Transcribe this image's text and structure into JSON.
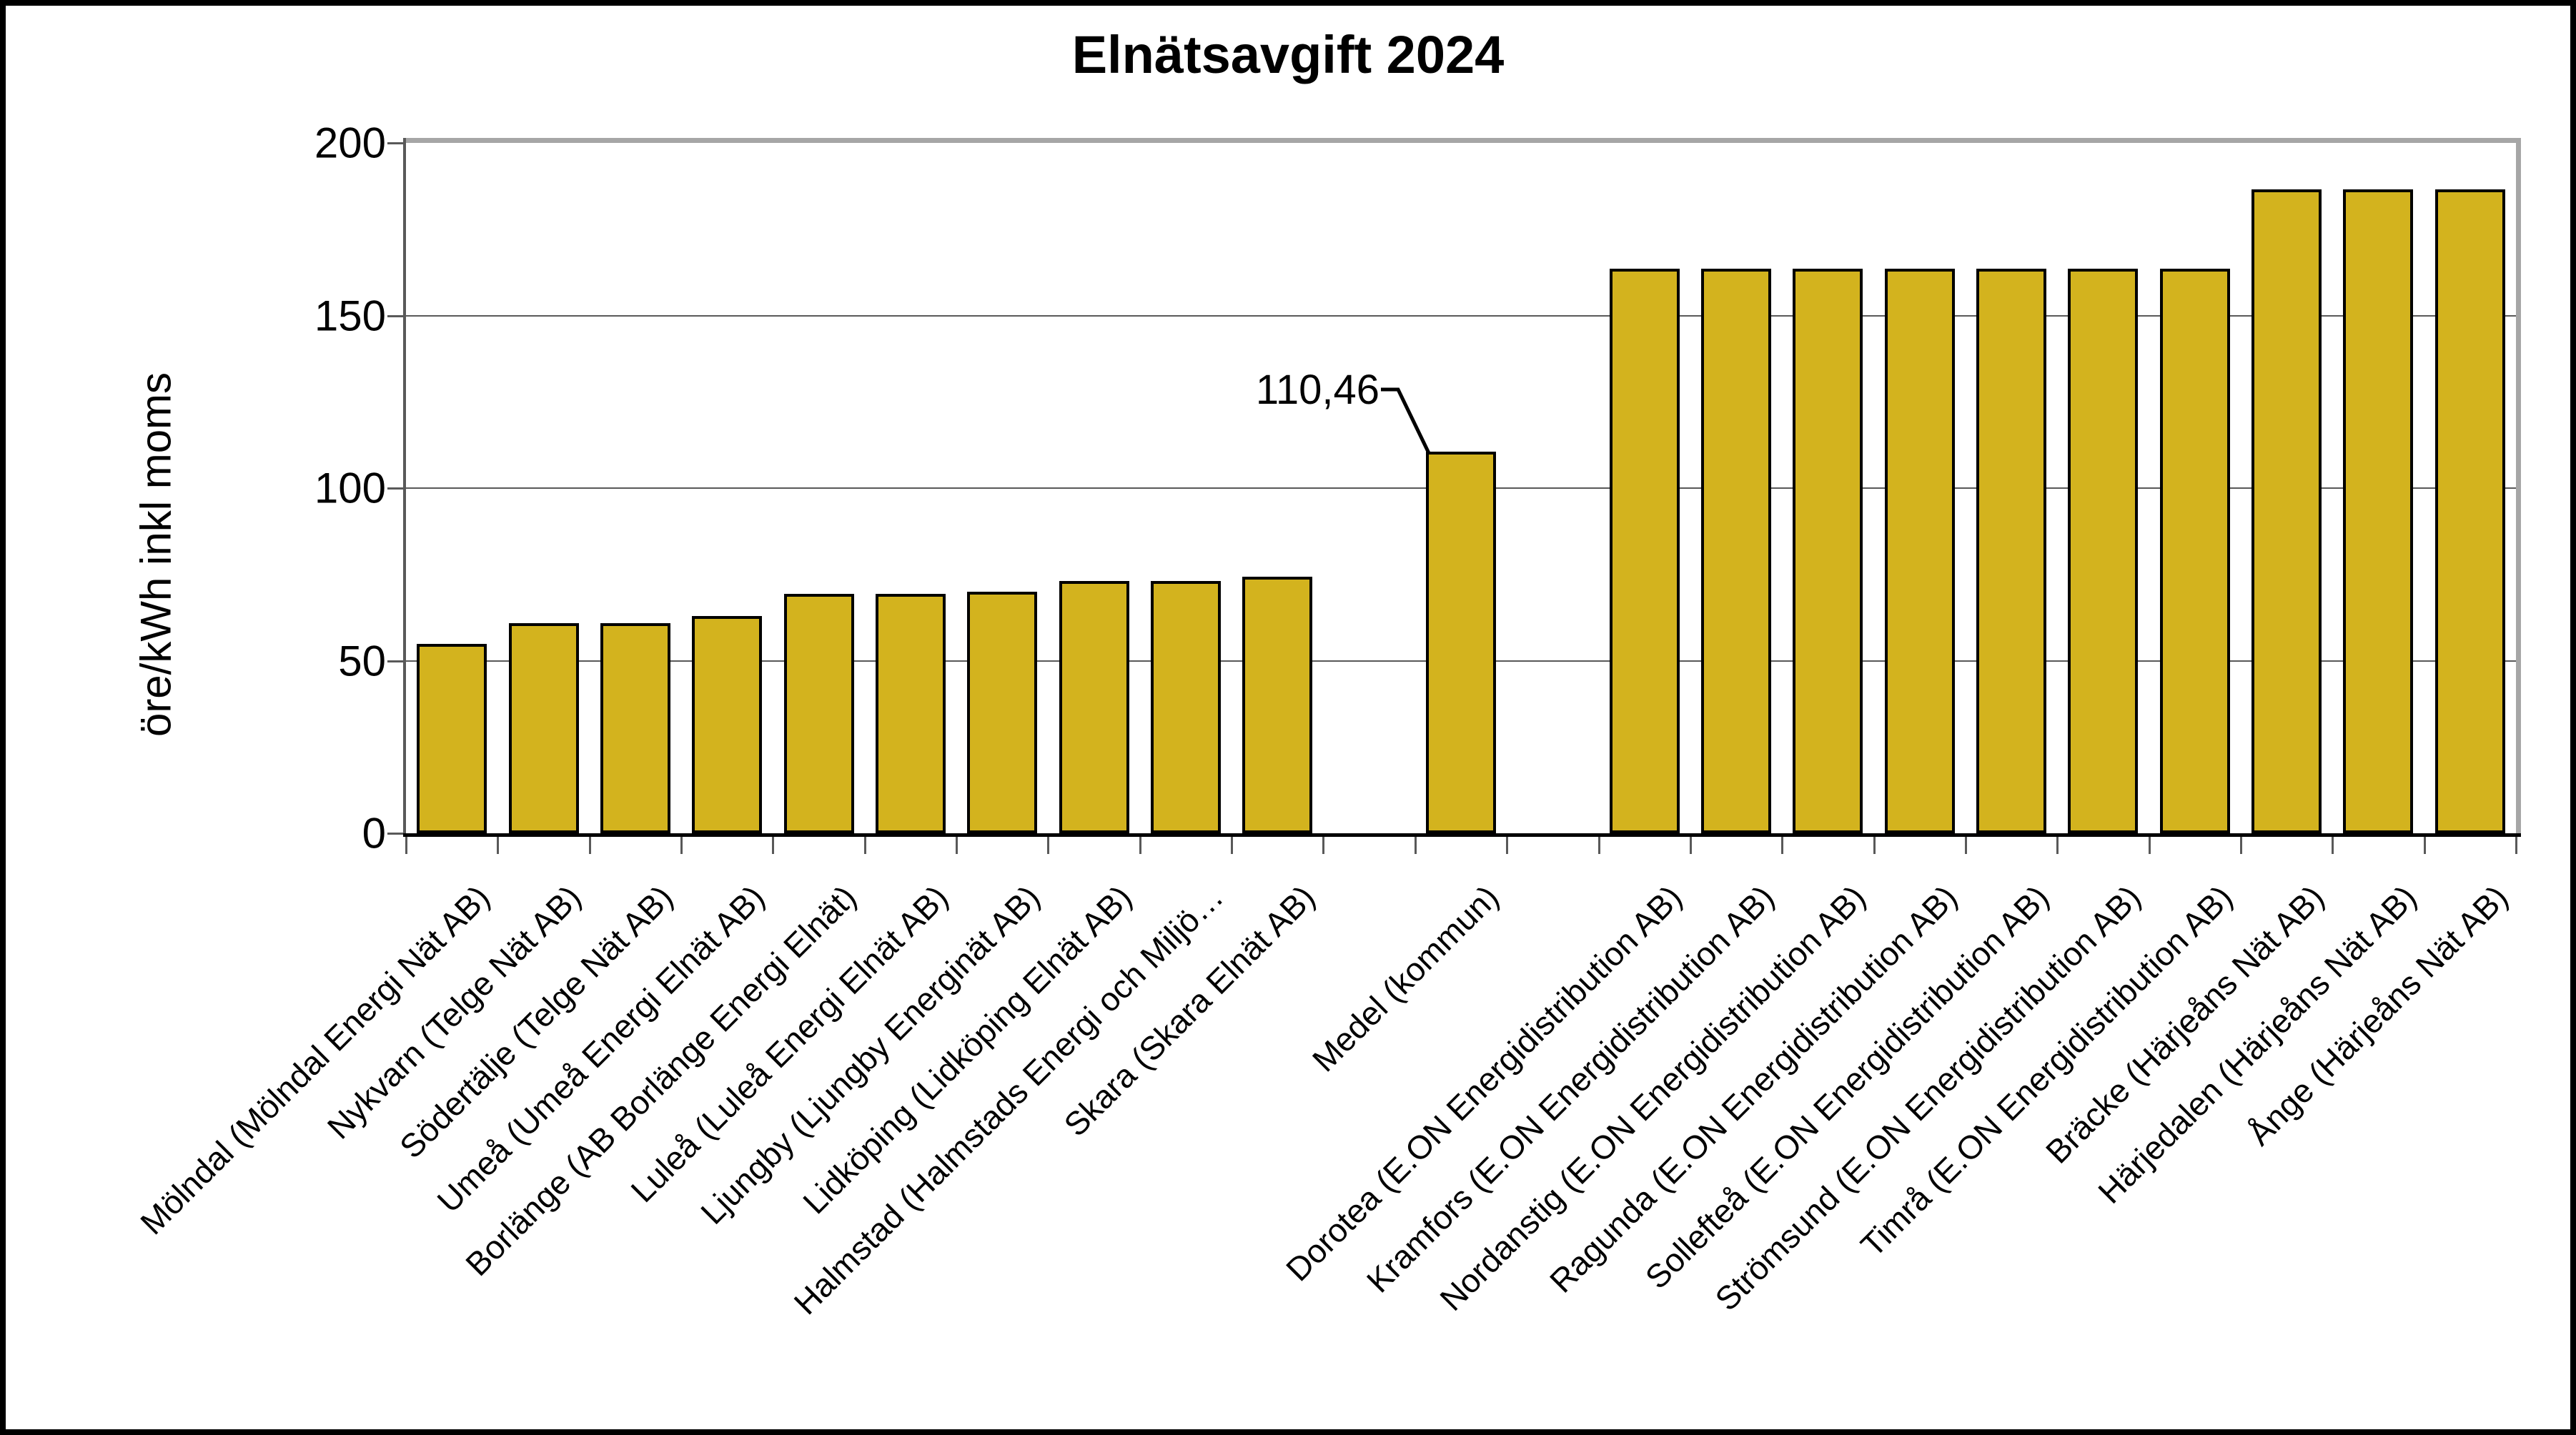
{
  "title": "Elnätsavgift 2024",
  "y_axis": {
    "label": "öre/kWh inkl moms",
    "tick_labels": [
      "0",
      "50",
      "100",
      "150",
      "200"
    ]
  },
  "annotation": {
    "text": "110,46",
    "target": "Medel (kommun)"
  },
  "chart_data": {
    "type": "bar",
    "title": "Elnätsavgift 2024",
    "xlabel": "",
    "ylabel": "öre/kWh inkl moms",
    "ylim": [
      0,
      200
    ],
    "yticks": [
      0,
      50,
      100,
      150,
      200
    ],
    "grid": true,
    "legend": false,
    "bar_color": "#D3B31E",
    "bar_border_color": "#000000",
    "n_slots": 23,
    "bars": [
      {
        "label": "Mölndal (Mölndal Energi Nät AB)",
        "value": 54.9,
        "slot": 0
      },
      {
        "label": "Nykvarn (Telge Nät AB)",
        "value": 60.9,
        "slot": 1
      },
      {
        "label": "Södertälje (Telge Nät AB)",
        "value": 60.9,
        "slot": 2
      },
      {
        "label": "Umeå (Umeå Energi Elnät AB)",
        "value": 62.9,
        "slot": 3
      },
      {
        "label": "Borlänge (AB Borlänge Energi Elnät)",
        "value": 69.3,
        "slot": 4
      },
      {
        "label": "Luleå (Luleå Energi Elnät AB)",
        "value": 69.4,
        "slot": 5
      },
      {
        "label": "Ljungby (Ljungby Energinät AB)",
        "value": 69.9,
        "slot": 6
      },
      {
        "label": "Lidköping (Lidköping Elnät AB)",
        "value": 73.1,
        "slot": 7
      },
      {
        "label": "Halmstad (Halmstads Energi och Miljö…",
        "value": 73.1,
        "slot": 8
      },
      {
        "label": "Skara (Skara Elnät AB)",
        "value": 74.4,
        "slot": 9
      },
      {
        "label": "Medel (kommun)",
        "value": 110.46,
        "slot": 11,
        "annotated": true
      },
      {
        "label": "Dorotea (E.ON Energidistribution AB)",
        "value": 163.5,
        "slot": 13
      },
      {
        "label": "Kramfors (E.ON Energidistribution AB)",
        "value": 163.5,
        "slot": 14
      },
      {
        "label": "Nordanstig (E.ON Energidistribution AB)",
        "value": 163.5,
        "slot": 15
      },
      {
        "label": "Ragunda (E.ON Energidistribution AB)",
        "value": 163.5,
        "slot": 16
      },
      {
        "label": "Sollefteå (E.ON Energidistribution AB)",
        "value": 163.5,
        "slot": 17
      },
      {
        "label": "Strömsund (E.ON Energidistribution AB)",
        "value": 163.5,
        "slot": 18
      },
      {
        "label": "Timrå (E.ON Energidistribution AB)",
        "value": 163.5,
        "slot": 19
      },
      {
        "label": "Bräcke (Härjeåns Nät AB)",
        "value": 186.6,
        "slot": 20
      },
      {
        "label": "Härjedalen (Härjeåns Nät AB)",
        "value": 186.6,
        "slot": 21
      },
      {
        "label": "Ånge (Härjeåns Nät AB)",
        "value": 186.6,
        "slot": 22
      }
    ]
  }
}
